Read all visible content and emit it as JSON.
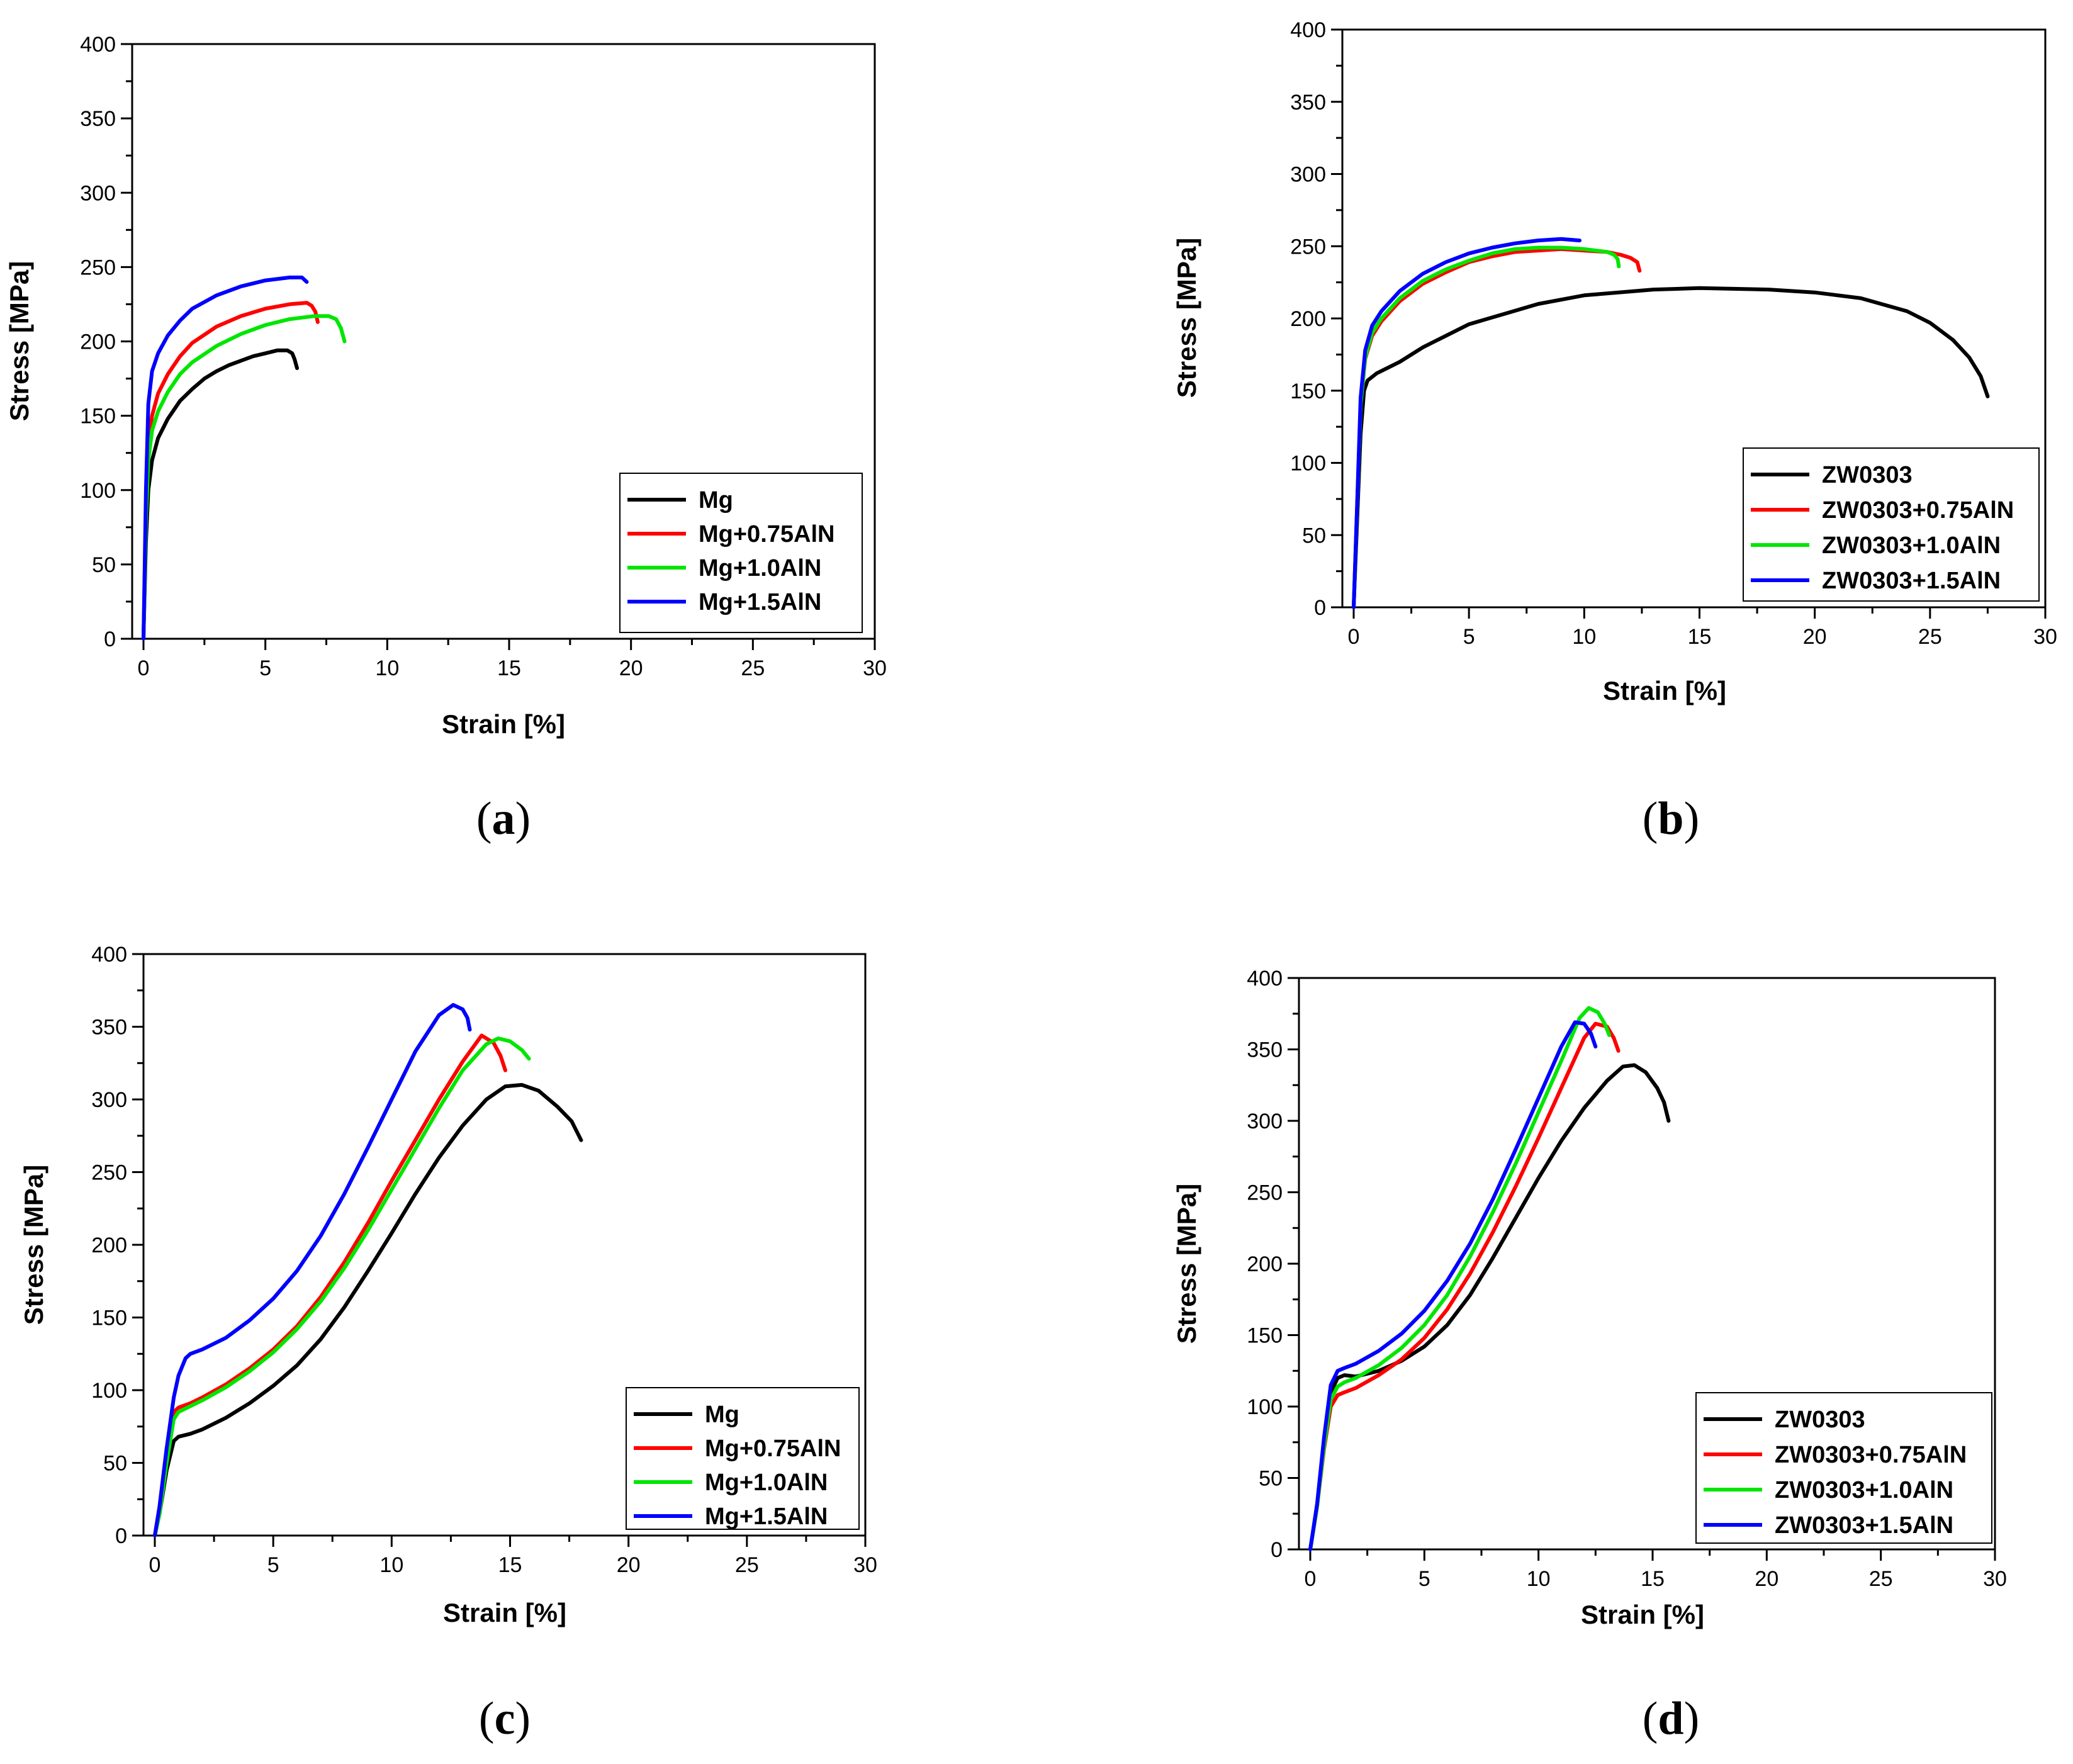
{
  "chart_data": [
    {
      "panel": "a",
      "type": "line",
      "xlabel": "Strain [%]",
      "ylabel": "Stress [MPa]",
      "xlim": [
        0,
        30
      ],
      "ylim": [
        0,
        400
      ],
      "xticks": [
        0,
        5,
        10,
        15,
        20,
        25,
        30
      ],
      "yticks": [
        0,
        50,
        100,
        150,
        200,
        250,
        300,
        350,
        400
      ],
      "legend_position": "bottom-right",
      "series": [
        {
          "name": "Mg",
          "color": "#000000",
          "x": [
            0,
            0.1,
            0.2,
            0.35,
            0.6,
            1.0,
            1.5,
            2.0,
            2.5,
            3.0,
            3.5,
            4.0,
            4.5,
            5.0,
            5.5,
            5.9,
            6.1,
            6.2,
            6.3
          ],
          "y": [
            0,
            65,
            100,
            120,
            135,
            148,
            160,
            168,
            175,
            180,
            184,
            187,
            190,
            192,
            194,
            194,
            192,
            188,
            182
          ]
        },
        {
          "name": "Mg+0.75AlN",
          "color": "#ff0000",
          "x": [
            0,
            0.1,
            0.2,
            0.35,
            0.6,
            1.0,
            1.5,
            2.0,
            3.0,
            4.0,
            5.0,
            6.0,
            6.7,
            6.9,
            7.05,
            7.15
          ],
          "y": [
            0,
            85,
            130,
            150,
            165,
            178,
            190,
            199,
            210,
            217,
            222,
            225,
            226,
            224,
            220,
            213
          ]
        },
        {
          "name": "Mg+1.0AlN",
          "color": "#00e600",
          "x": [
            0,
            0.1,
            0.2,
            0.35,
            0.6,
            1.0,
            1.5,
            2.0,
            3.0,
            4.0,
            5.0,
            6.0,
            7.0,
            7.6,
            7.9,
            8.1,
            8.25
          ],
          "y": [
            0,
            80,
            120,
            140,
            153,
            166,
            178,
            186,
            197,
            205,
            211,
            215,
            217,
            217,
            215,
            209,
            200
          ]
        },
        {
          "name": "Mg+1.5AlN",
          "color": "#0000ff",
          "x": [
            0,
            0.1,
            0.2,
            0.35,
            0.6,
            1.0,
            1.5,
            2.0,
            3.0,
            4.0,
            5.0,
            6.0,
            6.5,
            6.7
          ],
          "y": [
            0,
            100,
            158,
            180,
            192,
            204,
            214,
            222,
            231,
            237,
            241,
            243,
            243,
            240
          ]
        }
      ]
    },
    {
      "panel": "b",
      "type": "line",
      "xlabel": "Strain [%]",
      "ylabel": "Stress [MPa]",
      "xlim": [
        0,
        30
      ],
      "ylim": [
        0,
        400
      ],
      "xticks": [
        0,
        5,
        10,
        15,
        20,
        25,
        30
      ],
      "yticks": [
        0,
        50,
        100,
        150,
        200,
        250,
        300,
        350,
        400
      ],
      "legend_position": "bottom-right",
      "series": [
        {
          "name": "ZW0303",
          "color": "#000000",
          "x": [
            0,
            0.15,
            0.3,
            0.45,
            0.6,
            1.0,
            2.0,
            3.0,
            5.0,
            8.0,
            10.0,
            13.0,
            15.0,
            18.0,
            20.0,
            22.0,
            24.0,
            25.0,
            26.0,
            26.7,
            27.2,
            27.5
          ],
          "y": [
            0,
            60,
            120,
            150,
            157,
            162,
            170,
            180,
            196,
            210,
            216,
            220,
            221,
            220,
            218,
            214,
            205,
            197,
            185,
            173,
            160,
            146
          ]
        },
        {
          "name": "ZW0303+0.75AlN",
          "color": "#ff0000",
          "x": [
            0,
            0.15,
            0.3,
            0.5,
            0.8,
            1.2,
            2.0,
            3.0,
            4.0,
            5.0,
            6.0,
            7.0,
            8.0,
            9.0,
            10.0,
            11.0,
            11.6,
            12.0,
            12.3,
            12.4
          ],
          "y": [
            0,
            70,
            140,
            172,
            188,
            198,
            212,
            224,
            232,
            239,
            243,
            246,
            247,
            248,
            247,
            246,
            244,
            242,
            239,
            233
          ]
        },
        {
          "name": "ZW0303+1.0AlN",
          "color": "#00e600",
          "x": [
            0,
            0.15,
            0.3,
            0.5,
            0.8,
            1.2,
            2.0,
            3.0,
            4.0,
            5.0,
            6.0,
            7.0,
            8.0,
            9.0,
            10.0,
            11.0,
            11.3,
            11.45,
            11.5
          ],
          "y": [
            0,
            70,
            140,
            173,
            190,
            200,
            214,
            226,
            234,
            240,
            245,
            248,
            249,
            249,
            248,
            246,
            244,
            241,
            236
          ]
        },
        {
          "name": "ZW0303+1.5AlN",
          "color": "#0000ff",
          "x": [
            0,
            0.15,
            0.3,
            0.5,
            0.8,
            1.2,
            2.0,
            3.0,
            4.0,
            5.0,
            6.0,
            7.0,
            8.0,
            9.0,
            9.8
          ],
          "y": [
            0,
            72,
            145,
            178,
            195,
            205,
            219,
            231,
            239,
            245,
            249,
            252,
            254,
            255,
            254
          ]
        }
      ]
    },
    {
      "panel": "c",
      "type": "line",
      "xlabel": "Strain [%]",
      "ylabel": "Stress [MPa]",
      "xlim": [
        0,
        30
      ],
      "ylim": [
        0,
        400
      ],
      "xticks": [
        0,
        5,
        10,
        15,
        20,
        25,
        30
      ],
      "yticks": [
        0,
        50,
        100,
        150,
        200,
        250,
        300,
        350,
        400
      ],
      "legend_position": "bottom-right",
      "series": [
        {
          "name": "Mg",
          "color": "#000000",
          "x": [
            0,
            0.2,
            0.5,
            0.8,
            1.0,
            1.5,
            2.0,
            3.0,
            4.0,
            5.0,
            6.0,
            7.0,
            8.0,
            9.0,
            10.0,
            11.0,
            12.0,
            13.0,
            14.0,
            14.8,
            15.5,
            16.2,
            17.0,
            17.6,
            18.0
          ],
          "y": [
            0,
            15,
            45,
            65,
            68,
            70,
            73,
            81,
            91,
            103,
            117,
            135,
            157,
            182,
            208,
            235,
            260,
            282,
            300,
            309,
            310,
            306,
            295,
            285,
            272
          ]
        },
        {
          "name": "Mg+0.75AlN",
          "color": "#ff0000",
          "x": [
            0,
            0.2,
            0.5,
            0.8,
            1.0,
            1.5,
            2.0,
            3.0,
            4.0,
            5.0,
            6.0,
            7.0,
            8.0,
            9.0,
            10.0,
            11.0,
            12.0,
            13.0,
            13.8,
            14.3,
            14.6,
            14.8
          ],
          "y": [
            0,
            20,
            60,
            85,
            88,
            91,
            95,
            104,
            115,
            128,
            144,
            164,
            188,
            215,
            244,
            272,
            300,
            326,
            344,
            339,
            330,
            320
          ]
        },
        {
          "name": "Mg+1.0AlN",
          "color": "#00e600",
          "x": [
            0,
            0.2,
            0.5,
            0.8,
            1.0,
            1.5,
            2.0,
            3.0,
            4.0,
            5.0,
            6.0,
            7.0,
            8.0,
            9.0,
            10.0,
            11.0,
            12.0,
            13.0,
            14.0,
            14.5,
            15.0,
            15.5,
            15.8
          ],
          "y": [
            0,
            15,
            50,
            80,
            85,
            89,
            93,
            102,
            113,
            126,
            142,
            161,
            184,
            210,
            238,
            266,
            294,
            320,
            338,
            342,
            340,
            334,
            328
          ]
        },
        {
          "name": "Mg+1.5AlN",
          "color": "#0000ff",
          "x": [
            0,
            0.2,
            0.5,
            0.8,
            1.0,
            1.3,
            1.5,
            2.0,
            3.0,
            4.0,
            5.0,
            6.0,
            7.0,
            8.0,
            9.0,
            10.0,
            11.0,
            12.0,
            12.6,
            13.0,
            13.2,
            13.3
          ],
          "y": [
            0,
            20,
            60,
            95,
            110,
            122,
            125,
            128,
            136,
            148,
            163,
            182,
            206,
            235,
            267,
            300,
            333,
            358,
            365,
            362,
            356,
            348
          ]
        }
      ]
    },
    {
      "panel": "d",
      "type": "line",
      "xlabel": "Strain [%]",
      "ylabel": "Stress [MPa]",
      "xlim": [
        0,
        30
      ],
      "ylim": [
        0,
        400
      ],
      "xticks": [
        0,
        5,
        10,
        15,
        20,
        25,
        30
      ],
      "yticks": [
        0,
        50,
        100,
        150,
        200,
        250,
        300,
        350,
        400
      ],
      "legend_position": "bottom-right",
      "series": [
        {
          "name": "ZW0303",
          "color": "#000000",
          "x": [
            0,
            0.3,
            0.6,
            0.9,
            1.2,
            1.5,
            2.0,
            3.0,
            4.0,
            5.0,
            6.0,
            7.0,
            8.0,
            9.0,
            10.0,
            11.0,
            12.0,
            13.0,
            13.7,
            14.2,
            14.7,
            15.2,
            15.5,
            15.7
          ],
          "y": [
            0,
            30,
            75,
            110,
            120,
            122,
            121,
            125,
            132,
            142,
            157,
            178,
            204,
            232,
            260,
            286,
            309,
            328,
            338,
            339,
            334,
            323,
            313,
            300
          ]
        },
        {
          "name": "ZW0303+0.75AlN",
          "color": "#ff0000",
          "x": [
            0,
            0.3,
            0.6,
            0.9,
            1.2,
            1.5,
            2.0,
            3.0,
            4.0,
            5.0,
            6.0,
            7.0,
            8.0,
            9.0,
            10.0,
            11.0,
            12.0,
            12.5,
            13.0,
            13.3,
            13.5
          ],
          "y": [
            0,
            30,
            70,
            100,
            108,
            110,
            113,
            122,
            133,
            148,
            168,
            193,
            222,
            254,
            288,
            323,
            358,
            368,
            366,
            358,
            349
          ]
        },
        {
          "name": "ZW0303+1.0AlN",
          "color": "#00e600",
          "x": [
            0,
            0.3,
            0.6,
            0.9,
            1.2,
            1.5,
            2.0,
            3.0,
            4.0,
            5.0,
            6.0,
            7.0,
            8.0,
            9.0,
            10.0,
            11.0,
            11.8,
            12.2,
            12.6,
            12.9,
            13.1
          ],
          "y": [
            0,
            30,
            72,
            105,
            114,
            117,
            120,
            129,
            141,
            157,
            178,
            205,
            236,
            270,
            306,
            342,
            372,
            379,
            376,
            368,
            360
          ]
        },
        {
          "name": "ZW0303+1.5AlN",
          "color": "#0000ff",
          "x": [
            0,
            0.3,
            0.6,
            0.9,
            1.2,
            1.5,
            2.0,
            3.0,
            4.0,
            5.0,
            6.0,
            7.0,
            8.0,
            9.0,
            10.0,
            11.0,
            11.6,
            12.0,
            12.3,
            12.5
          ],
          "y": [
            0,
            32,
            78,
            115,
            125,
            127,
            130,
            139,
            151,
            167,
            188,
            214,
            245,
            280,
            316,
            352,
            369,
            368,
            361,
            352
          ]
        }
      ]
    }
  ],
  "panel_labels": [
    "a",
    "b",
    "c",
    "d"
  ],
  "legend_labels": {
    "a": [
      "Mg",
      "Mg+0.75AlN",
      "Mg+1.0AlN",
      "Mg+1.5AlN"
    ],
    "b": [
      "ZW0303",
      "ZW0303+0.75AlN",
      "ZW0303+1.0AlN",
      "ZW0303+1.5AlN"
    ],
    "c": [
      "Mg",
      "Mg+0.75AlN",
      "Mg+1.0AlN",
      "Mg+1.5AlN"
    ],
    "d": [
      "ZW0303",
      "ZW0303+0.75AlN",
      "ZW0303+1.0AlN",
      "ZW0303+1.5AlN"
    ]
  }
}
